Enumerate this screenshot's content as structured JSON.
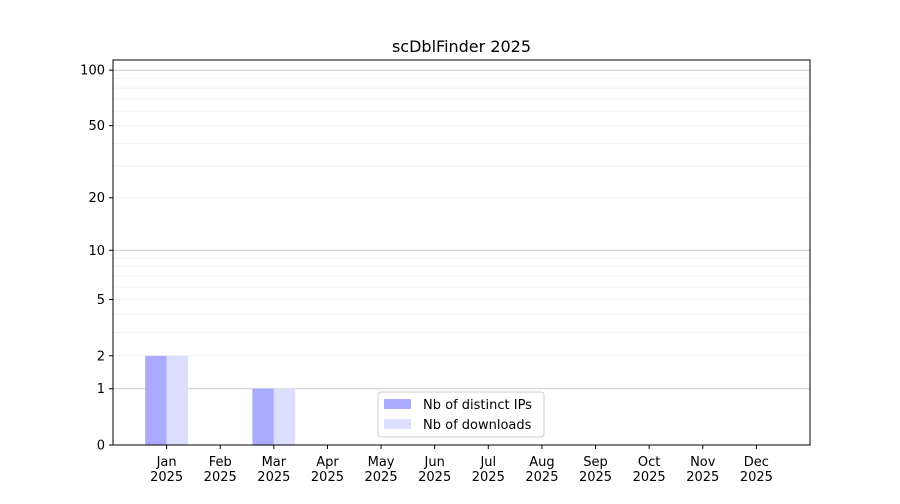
{
  "chart_data": {
    "type": "bar",
    "title": "scDblFinder 2025",
    "xlabel": "",
    "ylabel": "",
    "y_scale": "log10(1+x)",
    "ylim": [
      0,
      113
    ],
    "yticks": [
      0,
      1,
      2,
      5,
      10,
      20,
      50,
      100
    ],
    "ytick_labels": [
      "0",
      "1",
      "2",
      "5",
      "10",
      "20",
      "50",
      "100"
    ],
    "grid": true,
    "legend_placement": "bottom-center",
    "categories": [
      "Jan\n2025",
      "Feb\n2025",
      "Mar\n2025",
      "Apr\n2025",
      "May\n2025",
      "Jun\n2025",
      "Jul\n2025",
      "Aug\n2025",
      "Sep\n2025",
      "Oct\n2025",
      "Nov\n2025",
      "Dec\n2025"
    ],
    "series": [
      {
        "name": "Nb of distinct IPs",
        "color": "#aaaaff",
        "values": [
          2,
          0,
          1,
          0,
          0,
          0,
          0,
          0,
          0,
          0,
          0,
          0
        ]
      },
      {
        "name": "Nb of downloads",
        "color": "#ddddff",
        "values": [
          2,
          0,
          1,
          0,
          0,
          0,
          0,
          0,
          0,
          0,
          0,
          0
        ]
      }
    ]
  }
}
